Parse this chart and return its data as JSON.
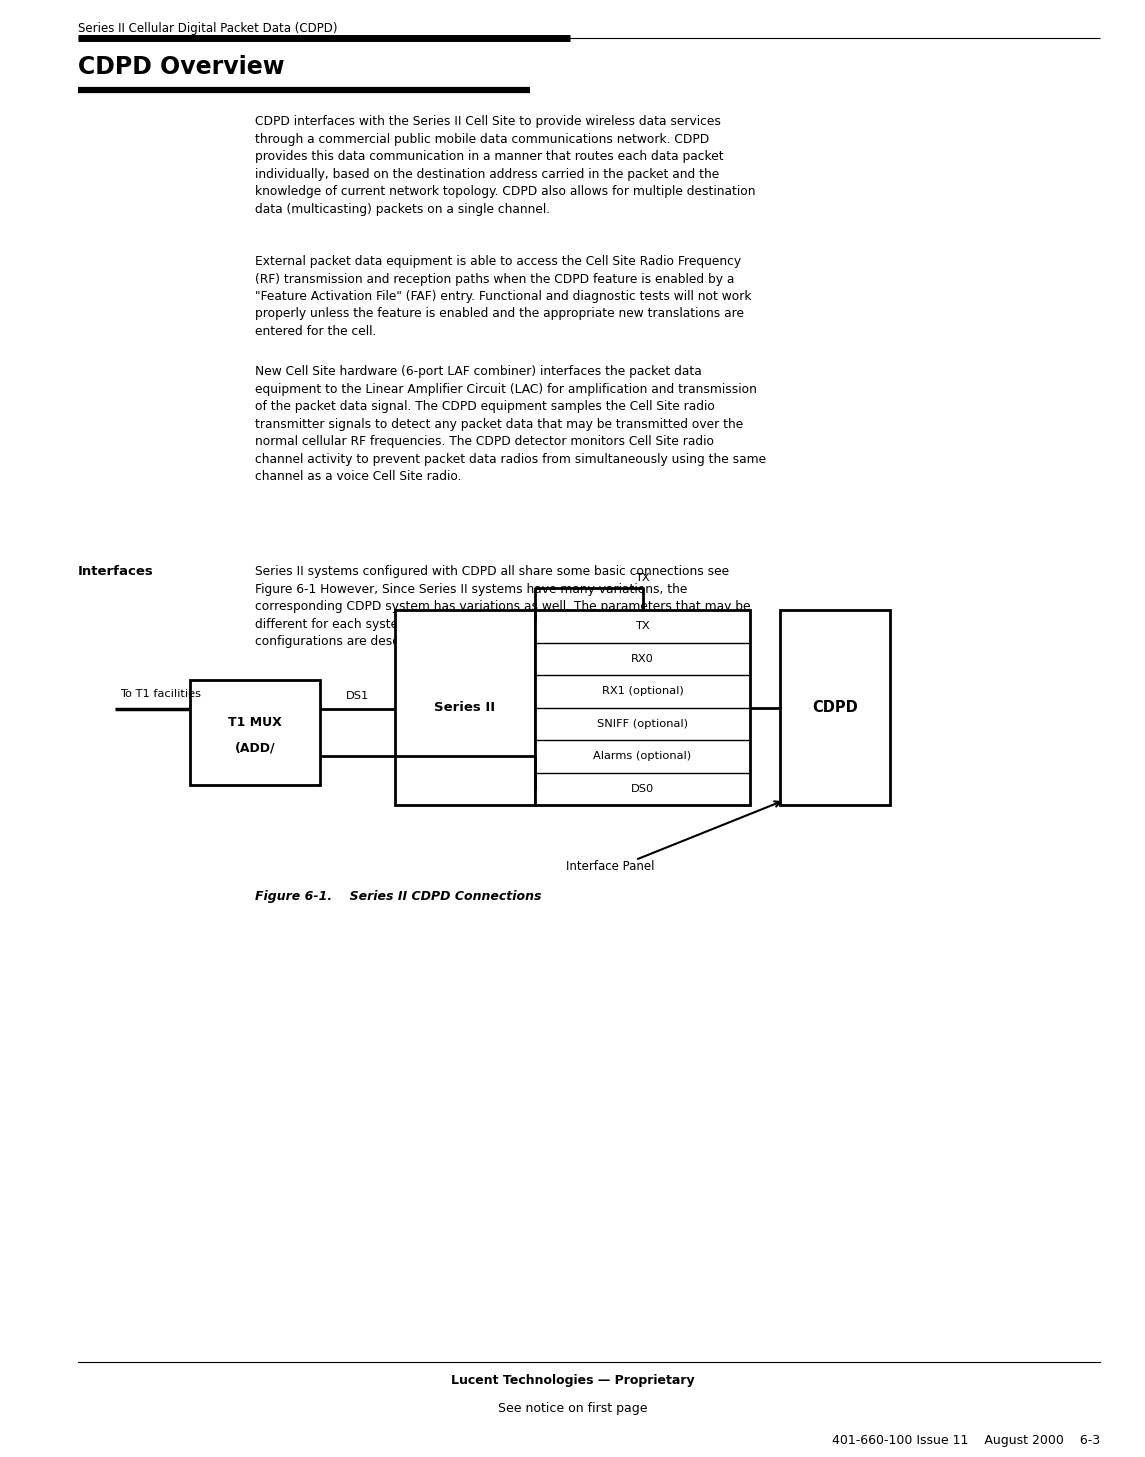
{
  "page_width": 11.25,
  "page_height": 14.3,
  "bg_color": "#ffffff",
  "header_text": "Series II Cellular Digital Packet Data (CDPD)",
  "title": "CDPD Overview",
  "para1": "CDPD interfaces with the Series II Cell Site to provide wireless data services\nthrough a commercial public mobile data communications network. CDPD\nprovides this data communication in a manner that routes each data packet\nindividually, based on the destination address carried in the packet and the\nknowledge of current network topology. CDPD also allows for multiple destination\ndata (multicasting) packets on a single channel.",
  "para2": "External packet data equipment is able to access the Cell Site Radio Frequency\n(RF) transmission and reception paths when the CDPD feature is enabled by a\n\"Feature Activation File\" (FAF) entry. Functional and diagnostic tests will not work\nproperly unless the feature is enabled and the appropriate new translations are\nentered for the cell.",
  "para3": "New Cell Site hardware (6-port LAF combiner) interfaces the packet data\nequipment to the Linear Amplifier Circuit (LAC) for amplification and transmission\nof the packet data signal. The CDPD equipment samples the Cell Site radio\ntransmitter signals to detect any packet data that may be transmitted over the\nnormal cellular RF frequencies. The CDPD detector monitors Cell Site radio\nchannel activity to prevent packet data radios from simultaneously using the same\nchannel as a voice Cell Site radio.",
  "interfaces_label": "Interfaces",
  "interfaces_text": "Series II systems configured with CDPD all share some basic connections see\nFigure 6-1 However, Since Series II systems have many variations, the\ncorresponding CDPD system has variations as well. The parameters that may be\ndifferent for each system and contribute to differing Series II/CDPD hardware\nconfigurations are described in the following paragraphs.",
  "figure_caption": "Figure 6-1.    Series II CDPD Connections",
  "footer_line1": "Lucent Technologies — Proprietary",
  "footer_line2": "See notice on first page",
  "footer_line3": "401-660-100 Issue 11    August 2000    6-3",
  "rows": [
    "TX",
    "RX0",
    "RX1 (optional)",
    "SNIFF (optional)",
    "Alarms (optional)",
    "DS0"
  ]
}
